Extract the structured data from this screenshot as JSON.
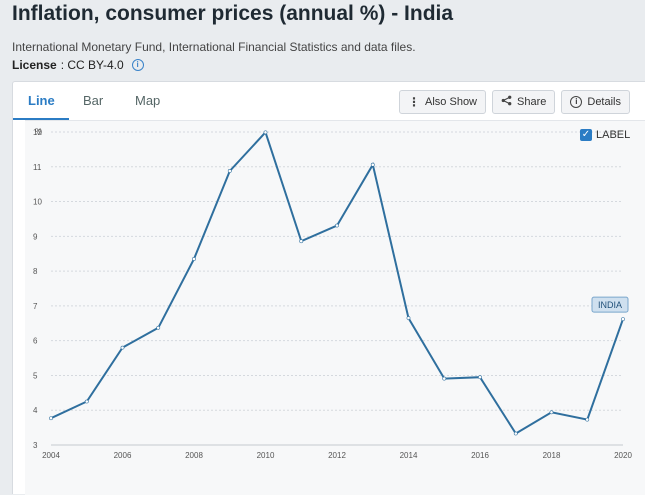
{
  "header": {
    "title": "Inflation, consumer prices (annual %) - India",
    "source": "International Monetary Fund, International Financial Statistics and data files.",
    "license_label": "License",
    "license_value": ": CC BY-4.0",
    "info_icon": "info-icon"
  },
  "tabs": [
    {
      "label": "Line",
      "active": true
    },
    {
      "label": "Bar",
      "active": false
    },
    {
      "label": "Map",
      "active": false
    }
  ],
  "actions": {
    "also_show": {
      "label": "Also Show",
      "icon": "vertical-dots-icon"
    },
    "share": {
      "label": "Share",
      "icon": "share-icon"
    },
    "details": {
      "label": "Details",
      "icon": "info-circle-icon"
    }
  },
  "label_toggle": {
    "label": "LABEL",
    "checked": true
  },
  "colors": {
    "accent": "#2b7cc4",
    "line": "#2f6f9e",
    "series_label_bg": "#cfe0ef"
  },
  "chart_data": {
    "type": "line",
    "ylabel": "%",
    "ylim": [
      3,
      12
    ],
    "yticks": [
      3,
      4,
      5,
      6,
      7,
      8,
      9,
      10,
      11,
      12
    ],
    "xlim": [
      2004,
      2020
    ],
    "xticks": [
      2004,
      2006,
      2008,
      2010,
      2012,
      2014,
      2016,
      2018,
      2020
    ],
    "grid": true,
    "series": [
      {
        "name": "INDIA",
        "x": [
          2004,
          2005,
          2006,
          2007,
          2008,
          2009,
          2010,
          2011,
          2012,
          2013,
          2014,
          2015,
          2016,
          2017,
          2018,
          2019,
          2020
        ],
        "values": [
          3.77,
          4.25,
          5.8,
          6.37,
          8.35,
          10.88,
          11.99,
          8.86,
          9.31,
          11.06,
          6.65,
          4.91,
          4.95,
          3.33,
          3.94,
          3.73,
          6.62
        ]
      }
    ]
  }
}
